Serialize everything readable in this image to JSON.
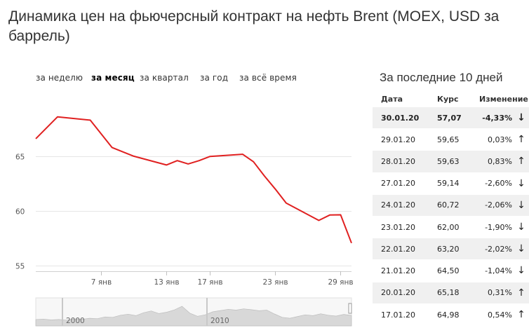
{
  "title": "Динамика цен на фьючерсный контракт на нефть Brent (MOEX, USD за баррель)",
  "period_tabs": [
    {
      "label": "за неделю",
      "active": false
    },
    {
      "label": "за месяц",
      "active": true
    },
    {
      "label": "за квартал",
      "active": false
    },
    {
      "label": "за год",
      "active": false
    },
    {
      "label": "за всё время",
      "active": false
    }
  ],
  "chart_data": {
    "type": "line",
    "title": "",
    "xlabel": "",
    "ylabel": "",
    "grid": true,
    "y_ticks": [
      55,
      60,
      65
    ],
    "ylim": [
      54.5,
      70.5
    ],
    "x_ticks": [
      {
        "label": "7 янв",
        "date": "2020-01-07"
      },
      {
        "label": "13 янв",
        "date": "2020-01-13"
      },
      {
        "label": "17 янв",
        "date": "2020-01-17"
      },
      {
        "label": "23 янв",
        "date": "2020-01-23"
      },
      {
        "label": "29 янв",
        "date": "2020-01-29"
      }
    ],
    "xlim": [
      "2020-01-01",
      "2020-01-30"
    ],
    "series": [
      {
        "color": "#e02020",
        "points": [
          [
            "2020-01-01",
            66.6
          ],
          [
            "2020-01-03",
            68.6
          ],
          [
            "2020-01-06",
            68.3
          ],
          [
            "2020-01-08",
            65.8
          ],
          [
            "2020-01-09",
            65.4
          ],
          [
            "2020-01-10",
            65.0
          ],
          [
            "2020-01-13",
            64.2
          ],
          [
            "2020-01-14",
            64.6
          ],
          [
            "2020-01-15",
            64.3
          ],
          [
            "2020-01-16",
            64.6
          ],
          [
            "2020-01-17",
            64.98
          ],
          [
            "2020-01-20",
            65.18
          ],
          [
            "2020-01-21",
            64.5
          ],
          [
            "2020-01-22",
            63.2
          ],
          [
            "2020-01-23",
            62.0
          ],
          [
            "2020-01-24",
            60.72
          ],
          [
            "2020-01-27",
            59.14
          ],
          [
            "2020-01-28",
            59.63
          ],
          [
            "2020-01-29",
            59.65
          ],
          [
            "2020-01-30",
            57.07
          ]
        ]
      }
    ]
  },
  "navigator": {
    "labels": [
      "2000",
      "2010"
    ],
    "area_color": "#d8d8d8"
  },
  "recent": {
    "title": "За последние 10 дней",
    "columns": [
      "Дата",
      "Курс",
      "Изменение"
    ],
    "rows": [
      {
        "date": "30.01.20",
        "rate": "57,07",
        "change": "-4,33%",
        "dir": "down",
        "arrow": "↓"
      },
      {
        "date": "29.01.20",
        "rate": "59,65",
        "change": "0,03%",
        "dir": "up",
        "arrow": "↑"
      },
      {
        "date": "28.01.20",
        "rate": "59,63",
        "change": "0,83%",
        "dir": "up",
        "arrow": "↑"
      },
      {
        "date": "27.01.20",
        "rate": "59,14",
        "change": "-2,60%",
        "dir": "down",
        "arrow": "↓"
      },
      {
        "date": "24.01.20",
        "rate": "60,72",
        "change": "-2,06%",
        "dir": "down",
        "arrow": "↓"
      },
      {
        "date": "23.01.20",
        "rate": "62,00",
        "change": "-1,90%",
        "dir": "down",
        "arrow": "↓"
      },
      {
        "date": "22.01.20",
        "rate": "63,20",
        "change": "-2,02%",
        "dir": "down",
        "arrow": "↓"
      },
      {
        "date": "21.01.20",
        "rate": "64,50",
        "change": "-1,04%",
        "dir": "down",
        "arrow": "↓"
      },
      {
        "date": "20.01.20",
        "rate": "65,18",
        "change": "0,31%",
        "dir": "up",
        "arrow": "↑"
      },
      {
        "date": "17.01.20",
        "rate": "64,98",
        "change": "0,54%",
        "dir": "up",
        "arrow": "↑"
      }
    ]
  }
}
